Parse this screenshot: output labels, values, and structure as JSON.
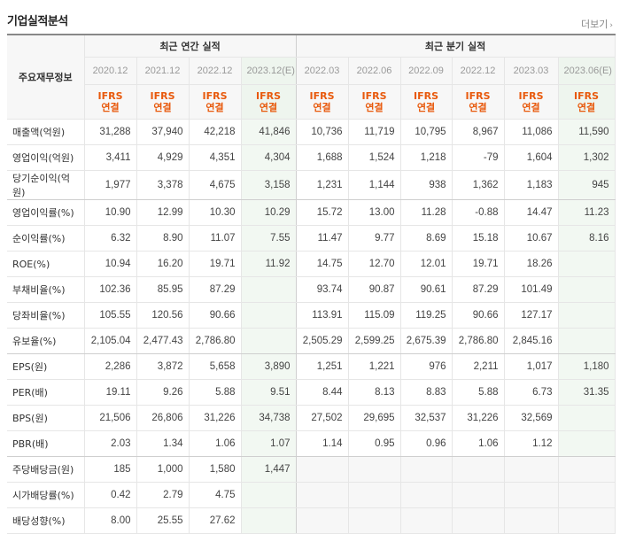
{
  "section": {
    "title": "기업실적분석",
    "more_label": "더보기"
  },
  "header": {
    "row_header": "주요재무정보",
    "annual_group": "최근 연간 실적",
    "quarter_group": "최근 분기 실적",
    "periods": [
      "2020.12",
      "2021.12",
      "2022.12",
      "2023.12(E)",
      "2022.03",
      "2022.06",
      "2022.09",
      "2022.12",
      "2023.03",
      "2023.06(E)"
    ],
    "ifrs": "IFRS",
    "consolidated": "연결"
  },
  "rows": [
    {
      "label": "매출액(억원)",
      "values": [
        "31,288",
        "37,940",
        "42,218",
        "41,846",
        "10,736",
        "11,719",
        "10,795",
        "8,967",
        "11,086",
        "11,590"
      ]
    },
    {
      "label": "영업이익(억원)",
      "values": [
        "3,411",
        "4,929",
        "4,351",
        "4,304",
        "1,688",
        "1,524",
        "1,218",
        "-79",
        "1,604",
        "1,302"
      ]
    },
    {
      "label": "당기순이익(억원)",
      "values": [
        "1,977",
        "3,378",
        "4,675",
        "3,158",
        "1,231",
        "1,144",
        "938",
        "1,362",
        "1,183",
        "945"
      ]
    },
    {
      "label": "영업이익률(%)",
      "values": [
        "10.90",
        "12.99",
        "10.30",
        "10.29",
        "15.72",
        "13.00",
        "11.28",
        "-0.88",
        "14.47",
        "11.23"
      ]
    },
    {
      "label": "순이익률(%)",
      "values": [
        "6.32",
        "8.90",
        "11.07",
        "7.55",
        "11.47",
        "9.77",
        "8.69",
        "15.18",
        "10.67",
        "8.16"
      ]
    },
    {
      "label": "ROE(%)",
      "values": [
        "10.94",
        "16.20",
        "19.71",
        "11.92",
        "14.75",
        "12.70",
        "12.01",
        "19.71",
        "18.26",
        ""
      ]
    },
    {
      "label": "부채비율(%)",
      "values": [
        "102.36",
        "85.95",
        "87.29",
        "",
        "93.74",
        "90.87",
        "90.61",
        "87.29",
        "101.49",
        ""
      ]
    },
    {
      "label": "당좌비율(%)",
      "values": [
        "105.55",
        "120.56",
        "90.66",
        "",
        "113.91",
        "115.09",
        "119.25",
        "90.66",
        "127.17",
        ""
      ]
    },
    {
      "label": "유보율(%)",
      "values": [
        "2,105.04",
        "2,477.43",
        "2,786.80",
        "",
        "2,505.29",
        "2,599.25",
        "2,675.39",
        "2,786.80",
        "2,845.16",
        ""
      ]
    },
    {
      "label": "EPS(원)",
      "values": [
        "2,286",
        "3,872",
        "5,658",
        "3,890",
        "1,251",
        "1,221",
        "976",
        "2,211",
        "1,017",
        "1,180"
      ]
    },
    {
      "label": "PER(배)",
      "values": [
        "19.11",
        "9.26",
        "5.88",
        "9.51",
        "8.44",
        "8.13",
        "8.83",
        "5.88",
        "6.73",
        "31.35"
      ]
    },
    {
      "label": "BPS(원)",
      "values": [
        "21,506",
        "26,806",
        "31,226",
        "34,738",
        "27,502",
        "29,695",
        "32,537",
        "31,226",
        "32,569",
        ""
      ]
    },
    {
      "label": "PBR(배)",
      "values": [
        "2.03",
        "1.34",
        "1.06",
        "1.07",
        "1.14",
        "0.95",
        "0.96",
        "1.06",
        "1.12",
        ""
      ]
    },
    {
      "label": "주당배당금(원)",
      "values": [
        "185",
        "1,000",
        "1,580",
        "1,447",
        "",
        "",
        "",
        "",
        "",
        ""
      ]
    },
    {
      "label": "시가배당률(%)",
      "values": [
        "0.42",
        "2.79",
        "4.75",
        "",
        "",
        "",
        "",
        "",
        "",
        ""
      ]
    },
    {
      "label": "배당성향(%)",
      "values": [
        "8.00",
        "25.55",
        "27.62",
        "",
        "",
        "",
        "",
        "",
        "",
        ""
      ]
    }
  ]
}
